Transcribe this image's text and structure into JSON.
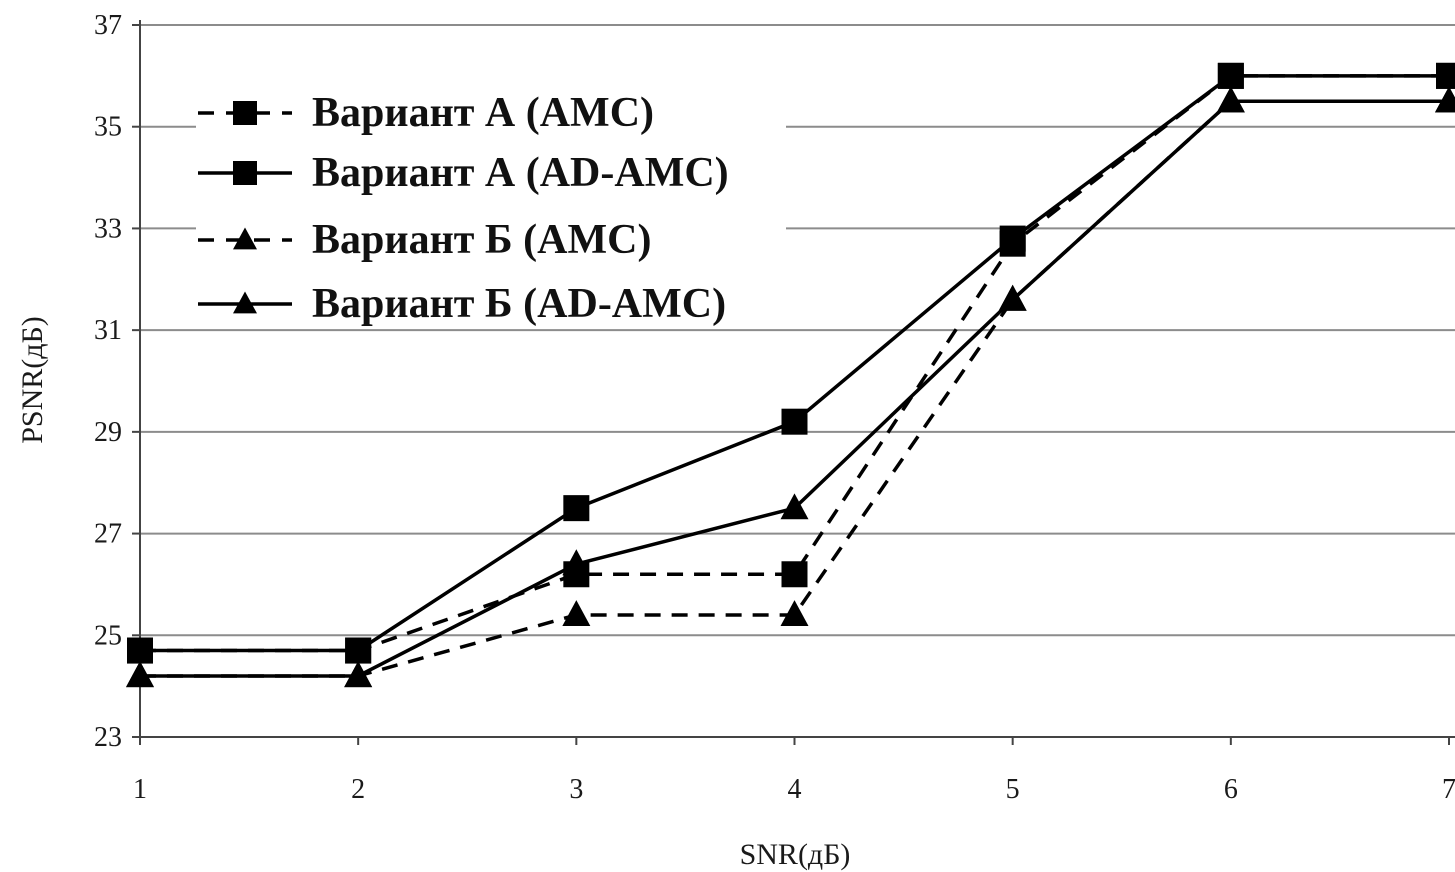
{
  "chart_data": {
    "type": "line",
    "title": "",
    "xlabel": "SNR(дБ)",
    "ylabel": "PSNR(дБ)",
    "x": [
      1,
      2,
      3,
      4,
      5,
      6,
      7
    ],
    "xlim": [
      1,
      7
    ],
    "ylim": [
      23,
      37
    ],
    "x_ticks": [
      "1",
      "2",
      "3",
      "4",
      "5",
      "6",
      "7"
    ],
    "y_ticks": [
      "23",
      "25",
      "27",
      "29",
      "31",
      "33",
      "35",
      "37"
    ],
    "grid": "horizontal",
    "legend_position": "top-left",
    "series": [
      {
        "name": "Вариант А (AMC)",
        "line": "dashed",
        "marker": "square",
        "color": "#000000",
        "values": [
          24.7,
          24.7,
          26.2,
          26.2,
          32.7,
          36.0,
          36.0
        ]
      },
      {
        "name": "Вариант А (AD-AMC)",
        "line": "solid",
        "marker": "square",
        "color": "#000000",
        "values": [
          24.7,
          24.7,
          27.5,
          29.2,
          32.8,
          36.0,
          36.0
        ]
      },
      {
        "name": "Вариант Б (AMC)",
        "line": "dashed",
        "marker": "triangle",
        "color": "#000000",
        "values": [
          24.2,
          24.2,
          25.4,
          25.4,
          31.6,
          35.5,
          35.5
        ]
      },
      {
        "name": "Вариант Б (AD-AMC)",
        "line": "solid",
        "marker": "triangle",
        "color": "#000000",
        "values": [
          24.2,
          24.2,
          26.4,
          27.5,
          31.6,
          35.5,
          35.5
        ]
      }
    ]
  }
}
